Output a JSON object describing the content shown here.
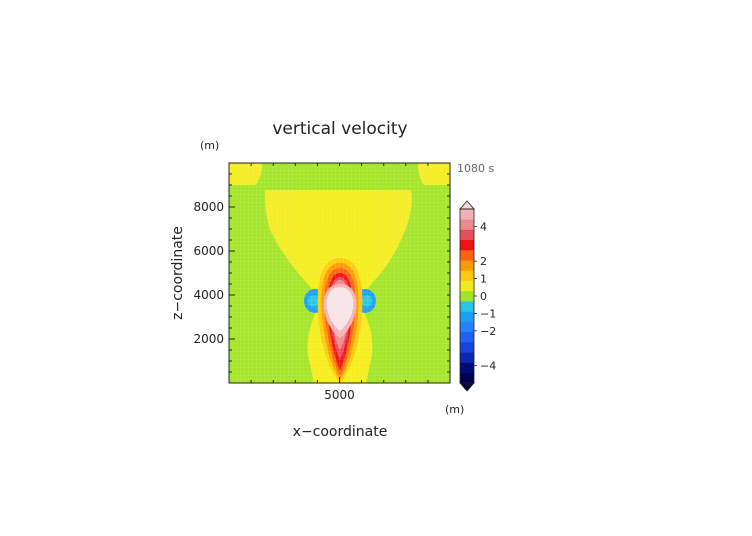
{
  "chart_data": {
    "type": "heatmap",
    "title": "vertical velocity",
    "time_label": "1080 s",
    "xlabel": "x−coordinate",
    "ylabel": "z−coordinate",
    "x_unit": "(m)",
    "y_unit": "(m)",
    "xlim": [
      0,
      10000
    ],
    "ylim": [
      0,
      10000
    ],
    "x_ticks": [
      5000
    ],
    "x_tick_labels": [
      "5000"
    ],
    "y_ticks": [
      2000,
      4000,
      6000,
      8000
    ],
    "y_tick_labels": [
      "2000",
      "4000",
      "6000",
      "8000"
    ],
    "colorbar": {
      "tick_values": [
        4,
        2,
        1,
        0,
        -1,
        -2,
        -4
      ],
      "tick_labels": [
        "4",
        "2",
        "1",
        "0",
        "−1",
        "−2",
        "−4"
      ],
      "range": [
        -5,
        5
      ],
      "extend": "both",
      "colors": [
        "#000050",
        "#000a78",
        "#0a28b4",
        "#1446dc",
        "#1e64f0",
        "#2882ff",
        "#1ea0f5",
        "#28c8e6",
        "#a5e628",
        "#f5ee20",
        "#ffcc14",
        "#ff9b0a",
        "#ff6414",
        "#f01414",
        "#e6505a",
        "#ee8c91",
        "#f4b4b6"
      ]
    },
    "fields": {
      "background_level": 0,
      "updraft_core_center": [
        5000,
        3700
      ],
      "updraft_max_level": 4,
      "downdraft_flanks": [
        [
          4200,
          3700
        ],
        [
          5800,
          3700
        ]
      ],
      "downdraft_level": -1
    }
  }
}
